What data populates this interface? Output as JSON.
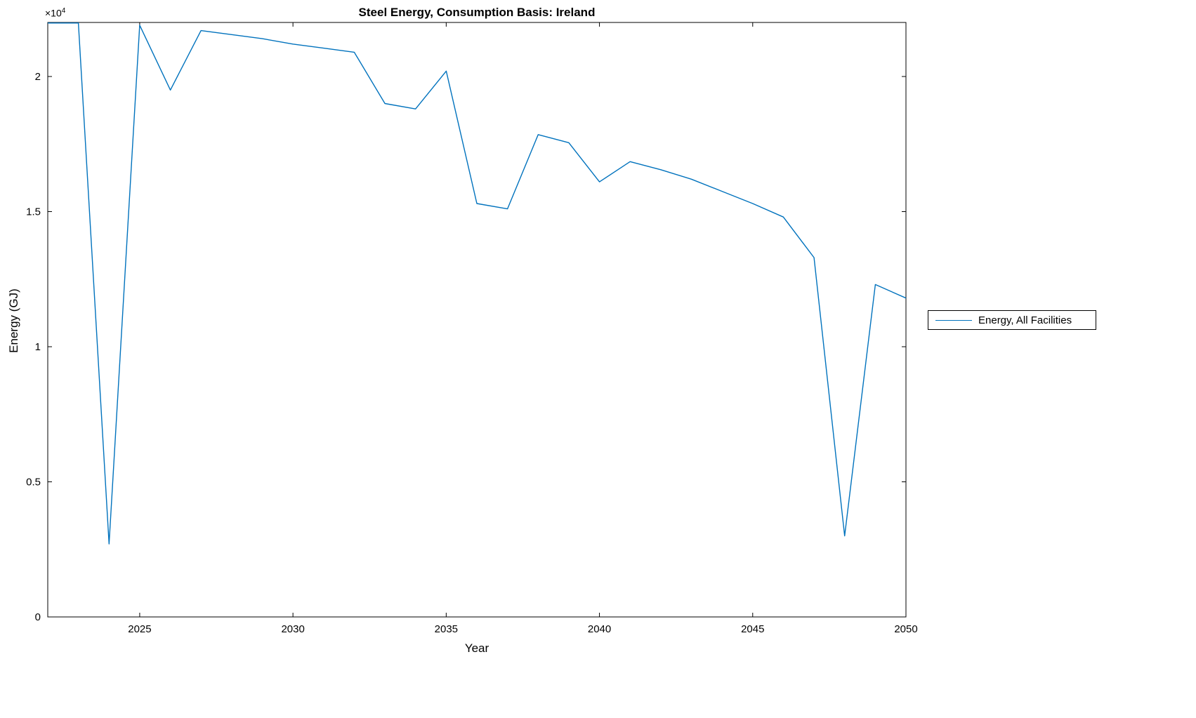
{
  "figure": {
    "background": "#ffffff"
  },
  "chart_data": {
    "type": "line",
    "title": "Steel Energy, Consumption Basis: Ireland",
    "xlabel": "Year",
    "ylabel": "Energy (GJ)",
    "y_multiplier_base": "×10",
    "y_multiplier_exp": "4",
    "xlim": [
      2022,
      2050
    ],
    "ylim": [
      0,
      22000
    ],
    "xticks": [
      2025,
      2030,
      2035,
      2040,
      2045,
      2050
    ],
    "xtick_labels": [
      "2025",
      "2030",
      "2035",
      "2040",
      "2045",
      "2050"
    ],
    "yticks": [
      0,
      5000,
      10000,
      15000,
      20000
    ],
    "ytick_labels": [
      "0",
      "0.5",
      "1",
      "1.5",
      "2"
    ],
    "grid": false,
    "legend_position": "right-outside",
    "line_color": "#0072BD",
    "series": [
      {
        "name": "Energy, All Facilities",
        "x": [
          2022,
          2023,
          2024,
          2025,
          2026,
          2027,
          2028,
          2029,
          2030,
          2031,
          2032,
          2033,
          2034,
          2035,
          2036,
          2037,
          2038,
          2039,
          2040,
          2041,
          2042,
          2043,
          2044,
          2045,
          2046,
          2047,
          2048,
          2049,
          2050
        ],
        "values": [
          21980,
          21980,
          2700,
          21900,
          19500,
          21700,
          21550,
          21400,
          21200,
          21050,
          20900,
          19000,
          18800,
          20200,
          15300,
          15100,
          17850,
          17550,
          16100,
          16850,
          16550,
          16200,
          15750,
          15300,
          14800,
          13300,
          3000,
          12300,
          11800
        ]
      }
    ]
  },
  "legend": {
    "label": "Energy, All Facilities"
  }
}
